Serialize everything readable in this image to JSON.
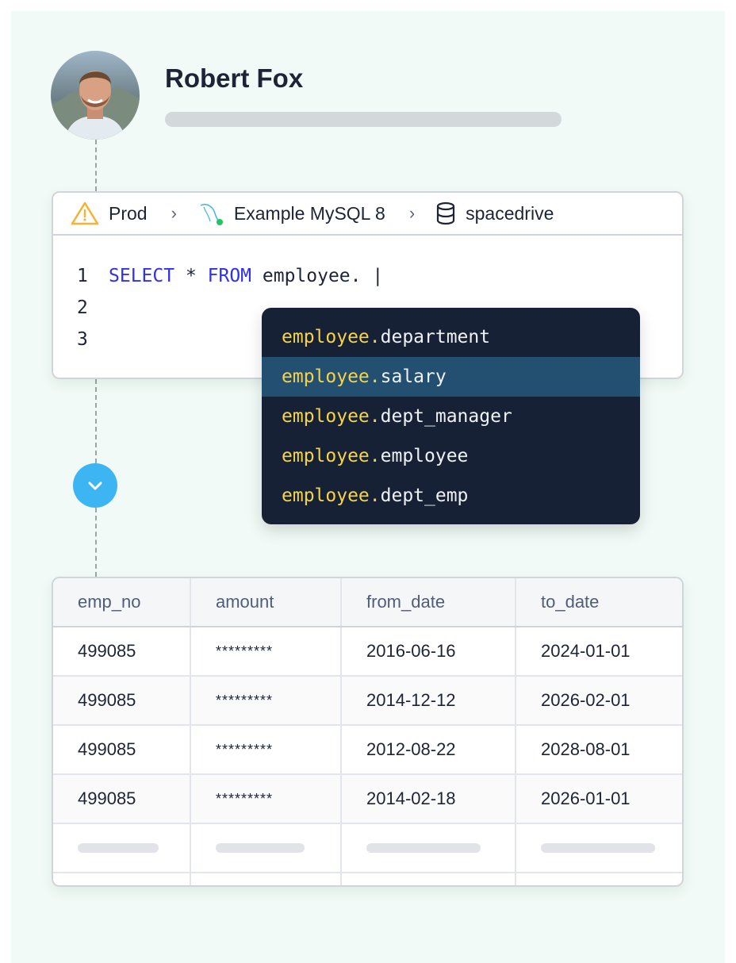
{
  "user": {
    "name": "Robert Fox"
  },
  "breadcrumb": [
    {
      "label": "Prod",
      "icon": "warning-icon"
    },
    {
      "label": "Example MySQL 8",
      "icon": "mysql-dolphin-icon"
    },
    {
      "label": "spacedrive",
      "icon": "database-icon"
    }
  ],
  "editor": {
    "line_numbers": [
      "1",
      "2",
      "3"
    ],
    "kw1": "SELECT",
    "op": " * ",
    "kw2": "FROM",
    "rest": " employee. |"
  },
  "autocomplete": {
    "prefix": "employee.",
    "items": [
      "department",
      "salary",
      "dept_manager",
      "employee",
      "dept_emp"
    ],
    "selected_index": 1
  },
  "table": {
    "columns": [
      "emp_no",
      "amount",
      "from_date",
      "to_date"
    ],
    "rows": [
      [
        "499085",
        "*********",
        "2016-06-16",
        "2024-01-01"
      ],
      [
        "499085",
        "*********",
        "2014-12-12",
        "2026-02-01"
      ],
      [
        "499085",
        "*********",
        "2012-08-22",
        "2028-08-01"
      ],
      [
        "499085",
        "*********",
        "2014-02-18",
        "2026-01-01"
      ]
    ]
  },
  "colors": {
    "accent": "#3db5f3",
    "keyword": "#2f30f0",
    "suggest_prefix": "#f6d44a",
    "dropdown_bg": "#172135",
    "selected_bg": "#234f70",
    "warning": "#f5b335",
    "online": "#22c55e"
  }
}
